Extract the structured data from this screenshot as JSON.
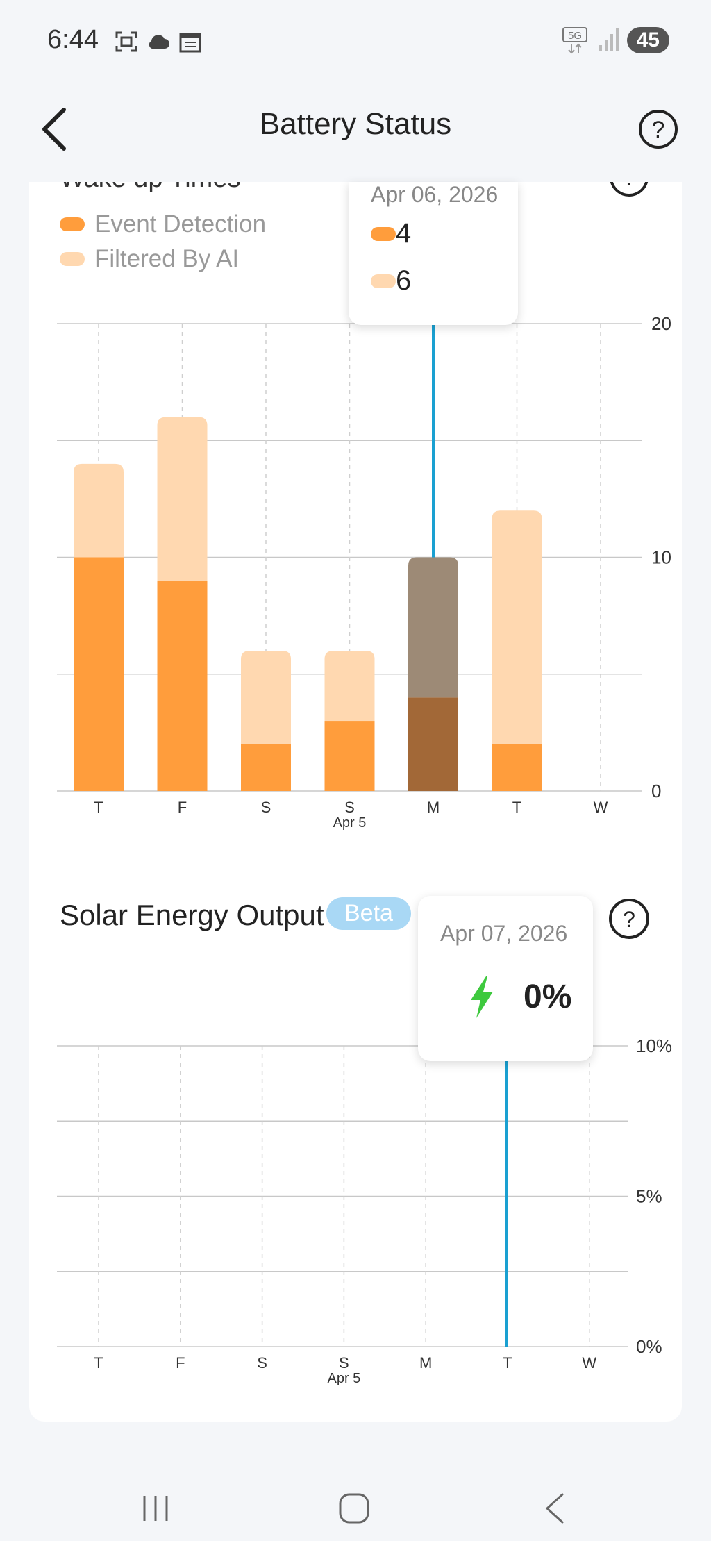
{
  "status_bar": {
    "time": "6:44",
    "network": "5G",
    "battery": "45",
    "icons_left": [
      "screenshot-icon",
      "cloud-icon",
      "calendar-icon"
    ],
    "icons_right": [
      "5g-icon",
      "signal-icon",
      "battery-icon"
    ]
  },
  "header": {
    "title": "Battery Status",
    "back_icon": "back-chevron-icon",
    "help_icon": "help-icon"
  },
  "wake_chart": {
    "title": "Wake up Times",
    "legend": [
      {
        "label": "Event Detection",
        "color": "#ff9d3c"
      },
      {
        "label": "Filtered By AI",
        "color": "#ffd8b0"
      }
    ],
    "tooltip": {
      "date": "Apr 06, 2026",
      "event": "4",
      "filtered": "6"
    },
    "date_label": "Apr 5"
  },
  "solar_chart": {
    "title": "Solar Energy Output",
    "badge": "Beta",
    "tooltip": {
      "date": "Apr 07, 2026",
      "value": "0%"
    },
    "date_label": "Apr 5"
  },
  "chart_data": [
    {
      "type": "bar",
      "title": "Wake up Times",
      "categories": [
        "T",
        "F",
        "S",
        "S",
        "M",
        "T",
        "W"
      ],
      "stacked": true,
      "series": [
        {
          "name": "Event Detection",
          "values": [
            10,
            9,
            2,
            3,
            4,
            2,
            0
          ],
          "color": "#ff9d3c"
        },
        {
          "name": "Filtered By AI",
          "values": [
            4,
            7,
            4,
            3,
            6,
            10,
            0
          ],
          "color": "#ffd8b0"
        }
      ],
      "ylim": [
        0,
        20
      ],
      "y_ticks": [
        "0",
        "10",
        "20"
      ],
      "highlighted_index": 4,
      "grid": true
    },
    {
      "type": "line",
      "title": "Solar Energy Output",
      "categories": [
        "T",
        "F",
        "S",
        "S",
        "M",
        "T",
        "W"
      ],
      "series": [
        {
          "name": "Solar Energy Output",
          "values": [
            0,
            0,
            0,
            0,
            0,
            0,
            0
          ]
        }
      ],
      "ylim": [
        0,
        10
      ],
      "y_ticks": [
        "0%",
        "5%",
        "10%"
      ],
      "highlighted_index": 5,
      "grid": true
    }
  ],
  "nav": {
    "recent_icon": "recent-apps-icon",
    "home_icon": "home-icon",
    "back_icon": "nav-back-icon"
  }
}
